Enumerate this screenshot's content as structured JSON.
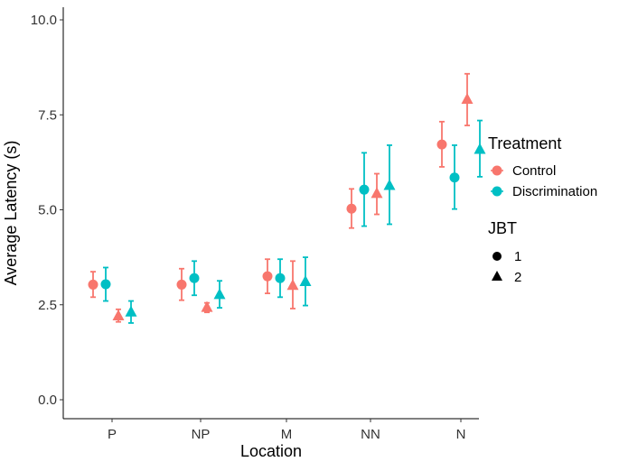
{
  "chart_data": {
    "type": "scatter",
    "xlabel": "Location",
    "ylabel": "Average Latency (s)",
    "categories": [
      "P",
      "NP",
      "M",
      "NN",
      "N"
    ],
    "ylim": [
      0,
      10
    ],
    "yticks": [
      0,
      2.5,
      5,
      7.5,
      10
    ],
    "ytick_labels": [
      "0.0",
      "2.5",
      "5.0",
      "7.5",
      "10.0"
    ],
    "grid": false,
    "colors": {
      "Control": "#F8766D",
      "Discrimination": "#00BFC4"
    },
    "series": [
      {
        "name": "Control, JBT 1",
        "treatment": "Control",
        "jbt": "1",
        "values": [
          3.03,
          3.03,
          3.25,
          5.03,
          6.72
        ],
        "lower": [
          2.7,
          2.62,
          2.8,
          4.52,
          6.13
        ],
        "upper": [
          3.37,
          3.45,
          3.7,
          5.55,
          7.32
        ]
      },
      {
        "name": "Discrimination, JBT 1",
        "treatment": "Discrimination",
        "jbt": "1",
        "values": [
          3.04,
          3.2,
          3.2,
          5.53,
          5.85
        ],
        "lower": [
          2.6,
          2.75,
          2.7,
          4.57,
          5.02
        ],
        "upper": [
          3.48,
          3.65,
          3.7,
          6.5,
          6.7
        ]
      },
      {
        "name": "Control, JBT 2",
        "treatment": "Control",
        "jbt": "2",
        "values": [
          2.2,
          2.42,
          3.0,
          5.42,
          7.9
        ],
        "lower": [
          2.05,
          2.3,
          2.4,
          4.88,
          7.22
        ],
        "upper": [
          2.38,
          2.55,
          3.65,
          5.95,
          8.58
        ]
      },
      {
        "name": "Discrimination, JBT 2",
        "treatment": "Discrimination",
        "jbt": "2",
        "values": [
          2.3,
          2.76,
          3.1,
          5.63,
          6.58
        ],
        "lower": [
          2.02,
          2.42,
          2.48,
          4.62,
          5.87
        ],
        "upper": [
          2.6,
          3.13,
          3.75,
          6.7,
          7.35
        ]
      }
    ],
    "legend": {
      "position": "right",
      "treatment": {
        "title": "Treatment",
        "entries": [
          "Control",
          "Discrimination"
        ]
      },
      "jbt": {
        "title": "JBT",
        "entries": [
          "1",
          "2"
        ]
      }
    }
  }
}
